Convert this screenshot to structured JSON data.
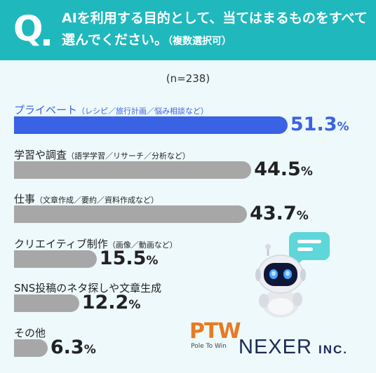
{
  "header": {
    "q_letter": "Q",
    "question": "AIを利用する目的として、当てはまるものをすべて選んでください。",
    "question_note": "（複数選択可）"
  },
  "chart_data": {
    "type": "bar",
    "orientation": "horizontal",
    "n_label": "(n=238)",
    "categories": [
      {
        "label": "プライベート",
        "note": "（レシピ／旅行計画／悩み相談など）"
      },
      {
        "label": "学習や調査",
        "note": "（語学学習／リサーチ／分析など）"
      },
      {
        "label": "仕事",
        "note": "（文章作成／要約／資料作成など）"
      },
      {
        "label": "クリエイティブ制作",
        "note": "（画像／動画など）"
      },
      {
        "label": "SNS投稿のネタ探しや文章生成",
        "note": ""
      },
      {
        "label": "その他",
        "note": ""
      }
    ],
    "values": [
      51.3,
      44.5,
      43.7,
      15.5,
      12.2,
      6.3
    ],
    "value_labels": [
      "51.3",
      "44.5",
      "43.7",
      "15.5",
      "12.2",
      "6.3"
    ],
    "unit": "%",
    "highlight_index": 0,
    "colors": {
      "highlight": "#3a62e4",
      "default": "#a7a7a7"
    }
  },
  "logos": {
    "ptw": "PTW",
    "ptw_sub": "Pole To Win",
    "nexer": "NEXER",
    "nexer_inc": "INC."
  }
}
